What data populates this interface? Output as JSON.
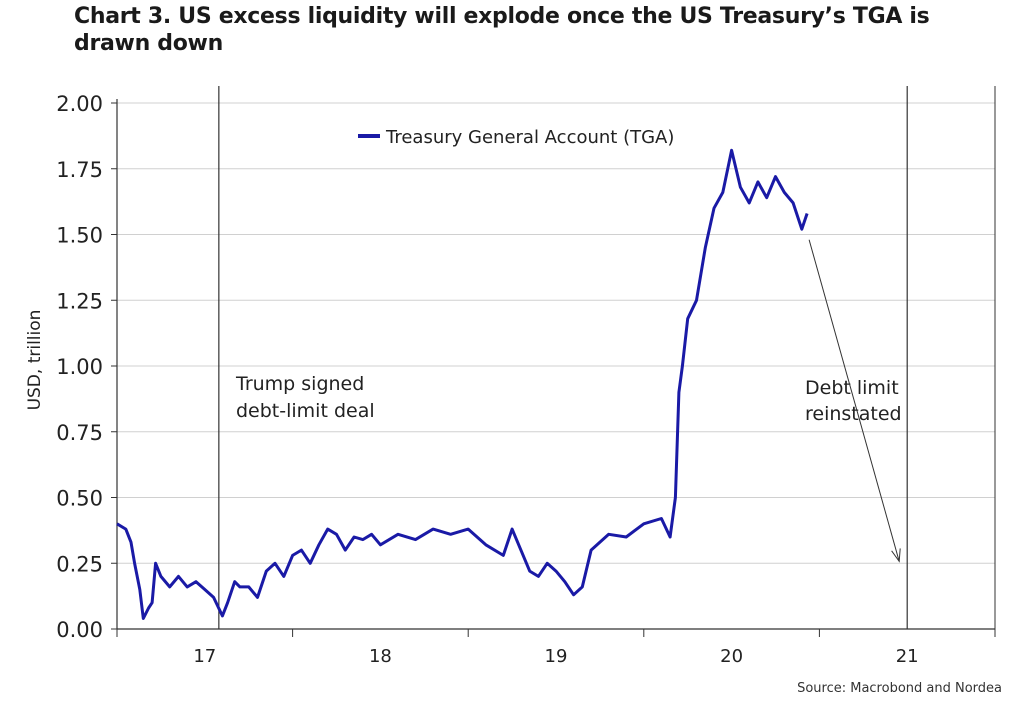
{
  "title": "Chart 3. US excess liquidity will explode once the US Treasury’s TGA is drawn down",
  "source": "Source: Macrobond and Nordea",
  "chart_data": {
    "type": "line",
    "ylabel": "USD, trillion",
    "xlabel": "",
    "ylim": [
      0,
      2.0
    ],
    "xlim": [
      2016.5,
      2021.5
    ],
    "y_ticks": [
      "0.00",
      "0.25",
      "0.50",
      "0.75",
      "1.00",
      "1.25",
      "1.50",
      "1.75",
      "2.00"
    ],
    "x_ticks": [
      "17",
      "18",
      "19",
      "20",
      "21"
    ],
    "x_tick_values": [
      2017,
      2018,
      2019,
      2020,
      2021
    ],
    "grid": "horizontal",
    "legend": "top-center",
    "series": [
      {
        "name": "Treasury General Account (TGA)",
        "color": "#1a1aa6",
        "x": [
          2016.5,
          2016.55,
          2016.58,
          2016.6,
          2016.63,
          2016.65,
          2016.68,
          2016.7,
          2016.72,
          2016.75,
          2016.8,
          2016.85,
          2016.9,
          2016.95,
          2017.0,
          2017.05,
          2017.1,
          2017.13,
          2017.17,
          2017.2,
          2017.25,
          2017.3,
          2017.35,
          2017.4,
          2017.45,
          2017.5,
          2017.55,
          2017.6,
          2017.65,
          2017.7,
          2017.75,
          2017.8,
          2017.85,
          2017.9,
          2017.95,
          2018.0,
          2018.1,
          2018.2,
          2018.3,
          2018.4,
          2018.5,
          2018.6,
          2018.7,
          2018.75,
          2018.8,
          2018.85,
          2018.9,
          2018.95,
          2019.0,
          2019.05,
          2019.1,
          2019.15,
          2019.2,
          2019.3,
          2019.4,
          2019.5,
          2019.6,
          2019.65,
          2019.68,
          2019.7,
          2019.72,
          2019.75,
          2019.8,
          2019.85,
          2019.9,
          2019.95,
          2020.0,
          2020.05,
          2020.1,
          2020.15,
          2020.2,
          2020.25,
          2020.3,
          2020.35,
          2020.4,
          2020.43
        ],
        "values": [
          0.4,
          0.38,
          0.33,
          0.25,
          0.15,
          0.04,
          0.08,
          0.1,
          0.25,
          0.2,
          0.16,
          0.2,
          0.16,
          0.18,
          0.15,
          0.12,
          0.05,
          0.1,
          0.18,
          0.16,
          0.16,
          0.12,
          0.22,
          0.25,
          0.2,
          0.28,
          0.3,
          0.25,
          0.32,
          0.38,
          0.36,
          0.3,
          0.35,
          0.34,
          0.36,
          0.32,
          0.36,
          0.34,
          0.38,
          0.36,
          0.38,
          0.32,
          0.28,
          0.38,
          0.3,
          0.22,
          0.2,
          0.25,
          0.22,
          0.18,
          0.13,
          0.16,
          0.3,
          0.36,
          0.35,
          0.4,
          0.42,
          0.35,
          0.5,
          0.9,
          1.0,
          1.18,
          1.25,
          1.45,
          1.6,
          1.66,
          1.82,
          1.68,
          1.62,
          1.7,
          1.64,
          1.72,
          1.66,
          1.62,
          1.52,
          1.58
        ]
      }
    ],
    "annotations": [
      {
        "text_lines": [
          "Trump signed",
          "debt-limit deal"
        ],
        "x": 2017.08
      },
      {
        "text_lines": [
          "Debt limit",
          "reinstated"
        ],
        "x": 2021.0
      },
      {
        "arrow_from": [
          2020.43,
          1.48
        ],
        "arrow_to": [
          2021.0,
          0.2
        ]
      }
    ]
  }
}
